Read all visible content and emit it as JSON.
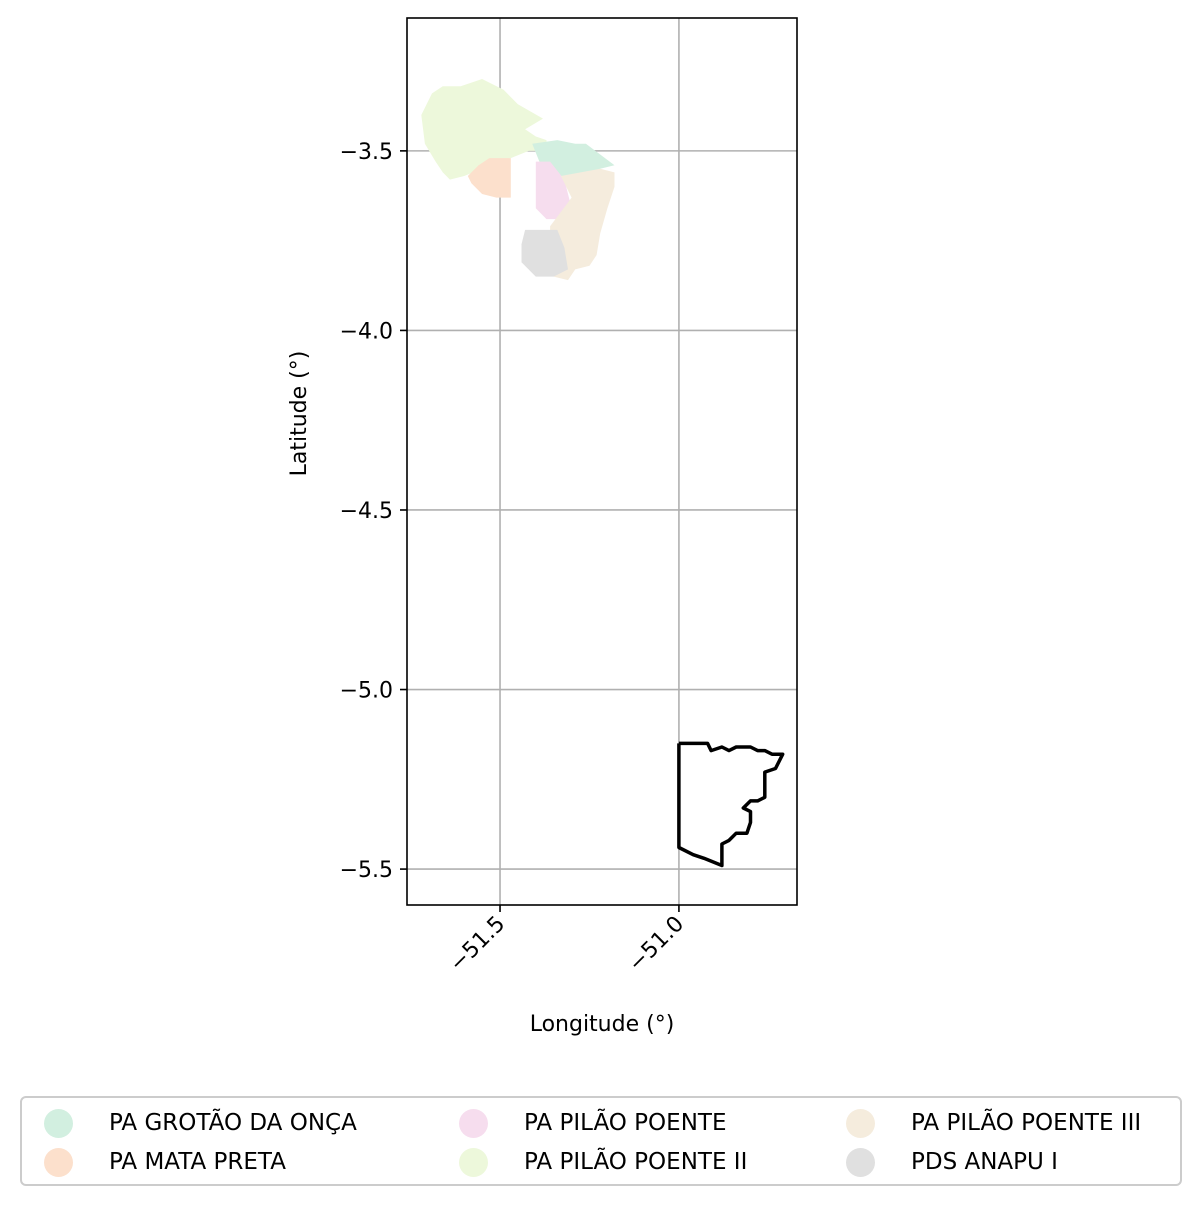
{
  "axes": {
    "xlabel": "Longitude (°)",
    "ylabel": "Latitude (°)",
    "xlim": [
      -51.76,
      -50.67
    ],
    "ylim": [
      -5.6,
      -3.13
    ],
    "xticks": [
      -51.5,
      -51.0
    ],
    "yticks": [
      -3.5,
      -4.0,
      -4.5,
      -5.0,
      -5.5
    ],
    "xtick_labels": [
      "−51.5",
      "−51.0"
    ],
    "ytick_labels": [
      "−3.5",
      "−4.0",
      "−4.5",
      "−5.0",
      "−5.5"
    ],
    "grid": true
  },
  "regions": [
    {
      "name": "PA PILÃO POENTE II",
      "color": "#edf8db",
      "coords": [
        [
          -51.68,
          -3.53
        ],
        [
          -51.71,
          -3.48
        ],
        [
          -51.72,
          -3.4
        ],
        [
          -51.69,
          -3.34
        ],
        [
          -51.66,
          -3.32
        ],
        [
          -51.61,
          -3.32
        ],
        [
          -51.55,
          -3.3
        ],
        [
          -51.49,
          -3.33
        ],
        [
          -51.45,
          -3.37
        ],
        [
          -51.38,
          -3.41
        ],
        [
          -51.43,
          -3.44
        ],
        [
          -51.4,
          -3.46
        ],
        [
          -51.37,
          -3.47
        ],
        [
          -51.37,
          -3.5
        ],
        [
          -51.42,
          -3.5
        ],
        [
          -51.47,
          -3.52
        ],
        [
          -51.52,
          -3.53
        ],
        [
          -51.55,
          -3.55
        ],
        [
          -51.6,
          -3.57
        ],
        [
          -51.64,
          -3.58
        ],
        [
          -51.66,
          -3.56
        ]
      ]
    },
    {
      "name": "PA GROTÃO DA ONÇA",
      "color": "#d2efe0",
      "coords": [
        [
          -51.41,
          -3.48
        ],
        [
          -51.34,
          -3.47
        ],
        [
          -51.29,
          -3.48
        ],
        [
          -51.26,
          -3.48
        ],
        [
          -51.22,
          -3.51
        ],
        [
          -51.18,
          -3.54
        ],
        [
          -51.22,
          -3.55
        ],
        [
          -51.28,
          -3.57
        ],
        [
          -51.33,
          -3.57
        ],
        [
          -51.36,
          -3.56
        ],
        [
          -51.39,
          -3.53
        ]
      ]
    },
    {
      "name": "PA MATA PRETA",
      "color": "#fce0cc",
      "coords": [
        [
          -51.53,
          -3.52
        ],
        [
          -51.47,
          -3.52
        ],
        [
          -51.47,
          -3.63
        ],
        [
          -51.51,
          -3.63
        ],
        [
          -51.55,
          -3.62
        ],
        [
          -51.58,
          -3.59
        ],
        [
          -51.59,
          -3.57
        ],
        [
          -51.56,
          -3.54
        ]
      ]
    },
    {
      "name": "PA PILÃO POENTE",
      "color": "#f6ddee",
      "coords": [
        [
          -51.4,
          -3.53
        ],
        [
          -51.36,
          -3.53
        ],
        [
          -51.32,
          -3.58
        ],
        [
          -51.3,
          -3.66
        ],
        [
          -51.33,
          -3.69
        ],
        [
          -51.37,
          -3.69
        ],
        [
          -51.4,
          -3.66
        ],
        [
          -51.4,
          -3.6
        ]
      ]
    },
    {
      "name": "PA PILÃO POENTE III",
      "color": "#f5ecdd",
      "coords": [
        [
          -51.33,
          -3.57
        ],
        [
          -51.22,
          -3.55
        ],
        [
          -51.18,
          -3.56
        ],
        [
          -51.18,
          -3.6
        ],
        [
          -51.2,
          -3.66
        ],
        [
          -51.22,
          -3.73
        ],
        [
          -51.23,
          -3.79
        ],
        [
          -51.25,
          -3.82
        ],
        [
          -51.29,
          -3.83
        ],
        [
          -51.31,
          -3.86
        ],
        [
          -51.35,
          -3.85
        ],
        [
          -51.36,
          -3.78
        ],
        [
          -51.36,
          -3.71
        ],
        [
          -51.33,
          -3.67
        ],
        [
          -51.3,
          -3.63
        ]
      ]
    },
    {
      "name": "PDS ANAPU I",
      "color": "#e0e0e0",
      "coords": [
        [
          -51.43,
          -3.72
        ],
        [
          -51.37,
          -3.72
        ],
        [
          -51.34,
          -3.72
        ],
        [
          -51.32,
          -3.77
        ],
        [
          -51.31,
          -3.83
        ],
        [
          -51.35,
          -3.85
        ],
        [
          -51.4,
          -3.85
        ],
        [
          -51.44,
          -3.81
        ],
        [
          -51.44,
          -3.76
        ]
      ]
    }
  ],
  "outline": {
    "color": "#000000",
    "coords": [
      [
        -51.0,
        -5.15
      ],
      [
        -50.92,
        -5.15
      ],
      [
        -50.91,
        -5.17
      ],
      [
        -50.88,
        -5.16
      ],
      [
        -50.86,
        -5.17
      ],
      [
        -50.84,
        -5.16
      ],
      [
        -50.8,
        -5.16
      ],
      [
        -50.78,
        -5.17
      ],
      [
        -50.76,
        -5.17
      ],
      [
        -50.74,
        -5.18
      ],
      [
        -50.71,
        -5.18
      ],
      [
        -50.72,
        -5.2
      ],
      [
        -50.73,
        -5.22
      ],
      [
        -50.76,
        -5.23
      ],
      [
        -50.76,
        -5.26
      ],
      [
        -50.76,
        -5.28
      ],
      [
        -50.76,
        -5.3
      ],
      [
        -50.78,
        -5.31
      ],
      [
        -50.8,
        -5.31
      ],
      [
        -50.82,
        -5.33
      ],
      [
        -50.8,
        -5.34
      ],
      [
        -50.8,
        -5.37
      ],
      [
        -50.81,
        -5.4
      ],
      [
        -50.84,
        -5.4
      ],
      [
        -50.86,
        -5.42
      ],
      [
        -50.88,
        -5.43
      ],
      [
        -50.88,
        -5.47
      ],
      [
        -50.88,
        -5.49
      ],
      [
        -50.93,
        -5.47
      ],
      [
        -50.96,
        -5.46
      ],
      [
        -51.0,
        -5.44
      ],
      [
        -51.0,
        -5.15
      ]
    ]
  },
  "legend": {
    "items": [
      {
        "label": "PA GROTÃO DA ONÇA",
        "color": "#d2efe0"
      },
      {
        "label": "PA MATA PRETA",
        "color": "#fce0cc"
      },
      {
        "label": "PA PILÃO POENTE",
        "color": "#f6ddee"
      },
      {
        "label": "PA PILÃO POENTE II",
        "color": "#edf8db"
      },
      {
        "label": "PA PILÃO POENTE III",
        "color": "#f5ecdd"
      },
      {
        "label": "PDS ANAPU I",
        "color": "#e0e0e0"
      }
    ],
    "columns": 3,
    "placement": "below"
  }
}
